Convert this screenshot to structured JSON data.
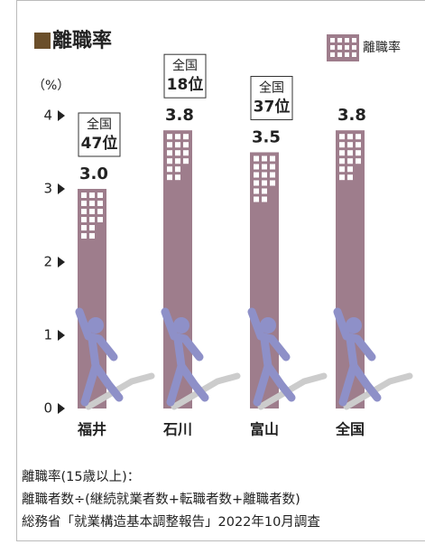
{
  "chart_data": {
    "type": "bar",
    "title": "離職率",
    "y_label": "（%）",
    "categories": [
      "福井",
      "石川",
      "富山",
      "全国"
    ],
    "series": [
      {
        "name": "離職率",
        "color": "#9e7d8c",
        "values": [
          3.0,
          3.8,
          3.5,
          3.8
        ],
        "value_labels": [
          "3.0",
          "3.8",
          "3.5",
          "3.8"
        ]
      }
    ],
    "rank_labels": [
      [
        "全国",
        "47位"
      ],
      [
        "全国",
        "18位"
      ],
      [
        "全国",
        "37位"
      ],
      null
    ],
    "ylim": [
      0,
      4
    ],
    "yticks": [
      0,
      1,
      2,
      3,
      4
    ],
    "grid": false,
    "legend": "top-right",
    "notes": [
      "離職率(15歳以上)：",
      "離職者数÷(継続就業者数+転職者数+離職者数)",
      "総務省「就業構造基本調整報告」2022年10月調査"
    ]
  }
}
